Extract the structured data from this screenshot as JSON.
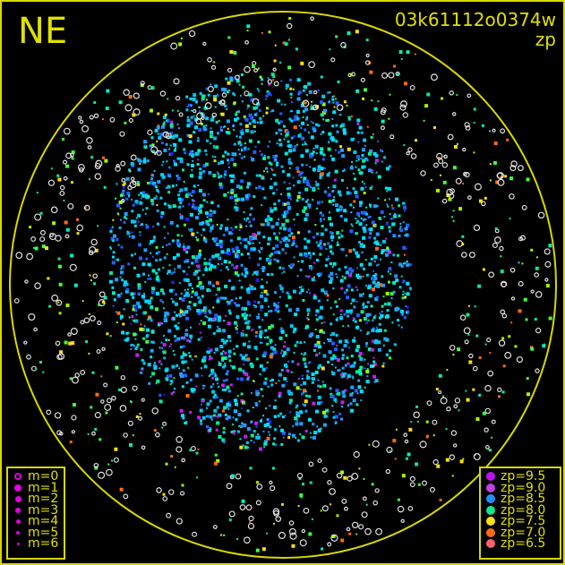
{
  "header": {
    "direction": "NE",
    "image_id": "03k61112o0374w",
    "mode": "zp"
  },
  "magnitude_legend": [
    {
      "label": "m=0",
      "hollow": true
    },
    {
      "label": "m=1"
    },
    {
      "label": "m=2"
    },
    {
      "label": "m=3"
    },
    {
      "label": "m=4"
    },
    {
      "label": "m=5"
    },
    {
      "label": "m=6"
    }
  ],
  "magnitude_legend_color": "#e000e0",
  "zp_legend": [
    {
      "label": "zp=9.5",
      "color": "#c010f0"
    },
    {
      "label": "zp=9.0",
      "color": "#c040e0"
    },
    {
      "label": "zp=8.5",
      "color": "#2090ff"
    },
    {
      "label": "zp=8.0",
      "color": "#10e890"
    },
    {
      "label": "zp=7.5",
      "color": "#ffe010"
    },
    {
      "label": "zp=7.0",
      "color": "#ff6a10"
    },
    {
      "label": "zp=6.5",
      "color": "#ff6070"
    }
  ],
  "colors": {
    "frame": "#d8d800",
    "text": "#e0e000",
    "background": "#000000",
    "no_zp": "#e0e0e0"
  }
}
